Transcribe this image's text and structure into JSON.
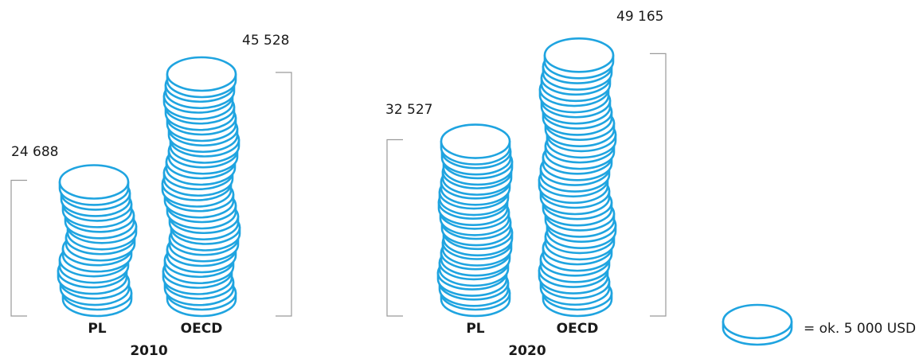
{
  "chart_data": {
    "type": "bar",
    "groups": [
      {
        "year": "2010",
        "bars": [
          {
            "category": "PL",
            "value": 24688,
            "label": "24 688"
          },
          {
            "category": "OECD",
            "value": 45528,
            "label": "45 528"
          }
        ]
      },
      {
        "year": "2020",
        "bars": [
          {
            "category": "PL",
            "value": 32527,
            "label": "32 527"
          },
          {
            "category": "OECD",
            "value": 49165,
            "label": "49 165"
          }
        ]
      }
    ],
    "legend": {
      "text": "= ok. 5 000 USD",
      "unit_value": 5000
    }
  },
  "colors": {
    "coin_stroke": "#1fa4e0",
    "coin_fill": "#ffffff",
    "bracket": "#9a9a9a",
    "text": "#1a1a1a"
  }
}
